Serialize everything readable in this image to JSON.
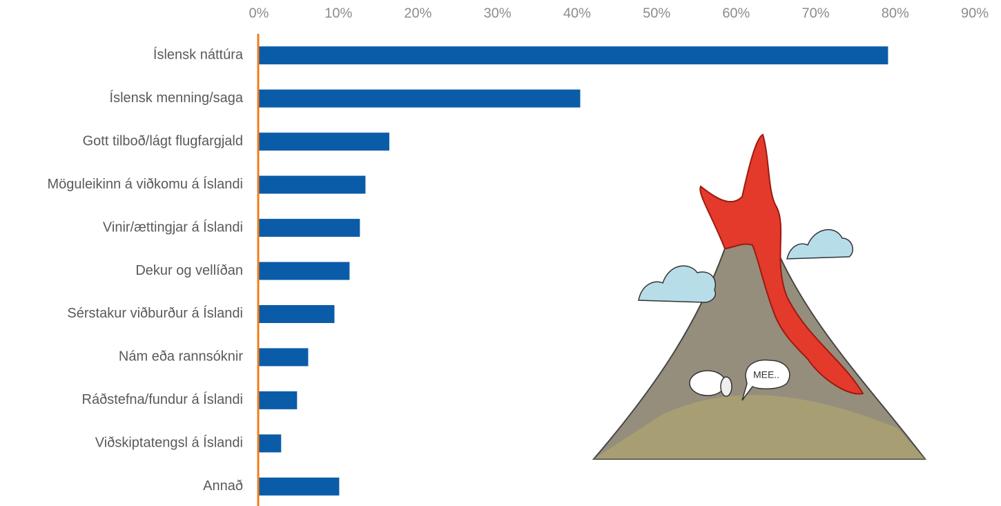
{
  "chart_data": {
    "type": "barh",
    "categories": [
      "Íslensk náttúra",
      "Íslensk menning/saga",
      "Gott tilboð/lágt flugfargjald",
      "Möguleikinn á viðkomu á Íslandi",
      "Vinir/ættingjar á Íslandi",
      "Dekur og vellíðan",
      "Sérstakur viðburður á Íslandi",
      "Nám eða rannsóknir",
      "Ráðstefna/fundur á Íslandi",
      "Viðskiptatengsl á Íslandi",
      "Annað"
    ],
    "values": [
      79.1,
      40.4,
      16.4,
      13.4,
      12.7,
      11.4,
      9.5,
      6.2,
      4.8,
      2.8,
      10.1
    ],
    "color": "#0b5ca8",
    "axis_color": "#f07d1a",
    "xlim": [
      0,
      90
    ],
    "xticks": [
      {
        "value": 0,
        "label": "0%"
      },
      {
        "value": 10,
        "label": "10%"
      },
      {
        "value": 20,
        "label": "20%"
      },
      {
        "value": 30,
        "label": "30%"
      },
      {
        "value": 40,
        "label": "40%"
      },
      {
        "value": 50,
        "label": "50%"
      },
      {
        "value": 60,
        "label": "60%"
      },
      {
        "value": 70,
        "label": "70%"
      },
      {
        "value": 80,
        "label": "80%"
      },
      {
        "value": 90,
        "label": "90%"
      }
    ],
    "grid": false,
    "annotations": [
      "MEE.."
    ]
  }
}
